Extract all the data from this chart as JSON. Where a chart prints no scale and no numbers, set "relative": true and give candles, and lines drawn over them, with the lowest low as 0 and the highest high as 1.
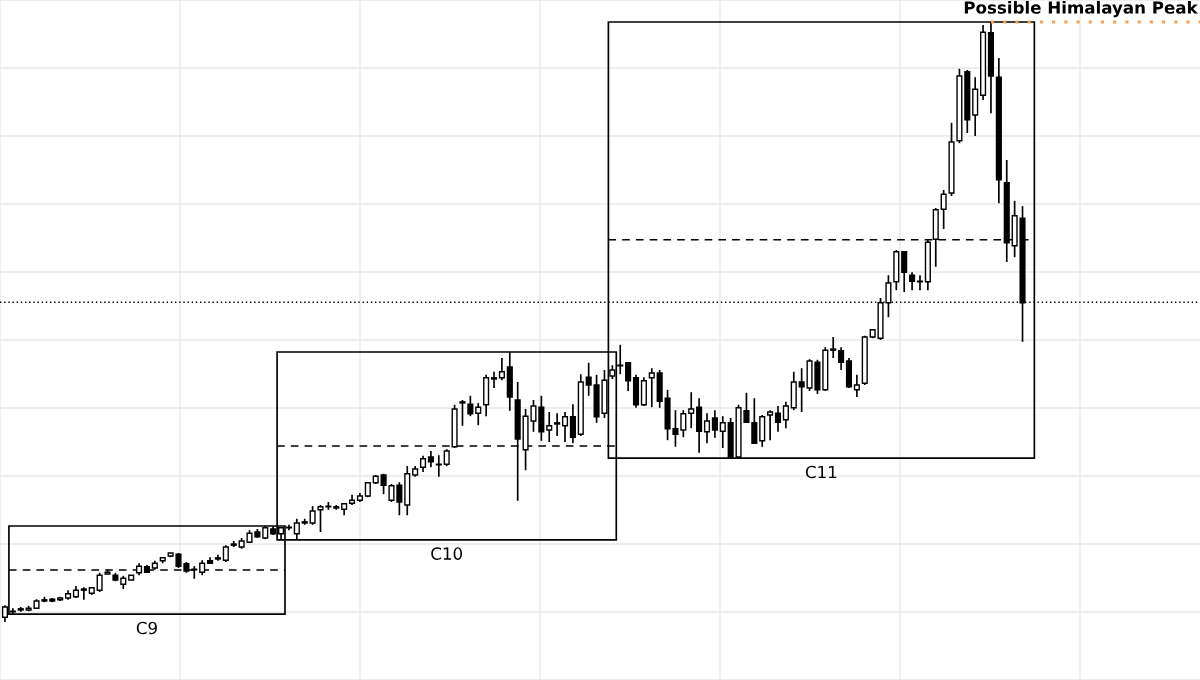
{
  "chart_data": {
    "type": "candlestick",
    "relative": true,
    "grid": true,
    "categories": [
      null,
      null,
      null,
      null,
      null,
      null,
      null,
      null,
      null,
      null,
      null,
      null,
      null,
      null,
      null,
      null,
      null,
      null,
      null,
      null,
      null,
      null,
      null,
      null,
      null,
      null,
      null,
      null,
      null,
      null,
      null,
      null,
      null,
      null,
      null,
      null,
      null,
      null,
      null,
      null,
      null,
      null,
      null,
      null,
      null,
      null,
      null,
      null,
      null,
      null,
      null,
      null,
      null,
      null,
      null,
      null,
      null,
      null,
      null,
      null,
      null,
      null,
      null,
      null,
      null,
      null,
      null,
      null,
      null,
      null,
      null,
      null,
      null,
      null,
      null,
      null,
      null,
      null,
      null,
      null,
      null,
      null,
      null,
      null,
      null,
      null,
      null,
      null,
      null,
      null,
      null,
      null,
      null,
      null,
      null,
      null,
      null,
      null,
      null,
      null,
      null,
      null,
      null,
      null,
      null,
      null,
      null,
      null,
      null,
      null,
      null,
      null,
      null,
      null,
      null,
      null,
      null,
      null,
      null,
      null,
      null,
      null,
      null,
      null,
      null,
      null,
      null,
      null,
      null,
      null
    ],
    "ohlc": [
      [
        0.008,
        0.028,
        0,
        0.025
      ],
      [
        0.017,
        0.023,
        0.013,
        0.018
      ],
      [
        0.02,
        0.025,
        0.017,
        0.022
      ],
      [
        0.02,
        0.027,
        0.018,
        0.023
      ],
      [
        0.023,
        0.038,
        0.022,
        0.035
      ],
      [
        0.035,
        0.042,
        0.033,
        0.037
      ],
      [
        0.038,
        0.04,
        0.033,
        0.035
      ],
      [
        0.037,
        0.042,
        0.035,
        0.04
      ],
      [
        0.04,
        0.053,
        0.037,
        0.047
      ],
      [
        0.042,
        0.06,
        0.04,
        0.053
      ],
      [
        0.053,
        0.058,
        0.037,
        0.055
      ],
      [
        0.048,
        0.058,
        0.045,
        0.057
      ],
      [
        0.053,
        0.082,
        0.05,
        0.078
      ],
      [
        0.08,
        0.087,
        0.08,
        0.083
      ],
      [
        0.078,
        0.082,
        0.068,
        0.07
      ],
      [
        0.063,
        0.077,
        0.055,
        0.073
      ],
      [
        0.07,
        0.078,
        0.07,
        0.078
      ],
      [
        0.082,
        0.098,
        0.078,
        0.093
      ],
      [
        0.092,
        0.095,
        0.082,
        0.083
      ],
      [
        0.09,
        0.102,
        0.087,
        0.098
      ],
      [
        0.102,
        0.108,
        0.098,
        0.107
      ],
      [
        0.11,
        0.115,
        0.108,
        0.115
      ],
      [
        0.113,
        0.115,
        0.09,
        0.093
      ],
      [
        0.097,
        0.1,
        0.082,
        0.085
      ],
      [
        0.087,
        0.093,
        0.072,
        0.088
      ],
      [
        0.083,
        0.103,
        0.078,
        0.098
      ],
      [
        0.102,
        0.108,
        0.097,
        0.098
      ],
      [
        0.105,
        0.112,
        0.102,
        0.107
      ],
      [
        0.103,
        0.128,
        0.1,
        0.125
      ],
      [
        0.128,
        0.135,
        0.125,
        0.13
      ],
      [
        0.125,
        0.14,
        0.122,
        0.135
      ],
      [
        0.133,
        0.153,
        0.132,
        0.148
      ],
      [
        0.15,
        0.155,
        0.14,
        0.142
      ],
      [
        0.14,
        0.16,
        0.138,
        0.157
      ],
      [
        0.155,
        0.16,
        0.145,
        0.147
      ],
      [
        0.147,
        0.158,
        0.137,
        0.157
      ],
      [
        0.157,
        0.162,
        0.153,
        0.158
      ],
      [
        0.147,
        0.172,
        0.137,
        0.165
      ],
      [
        0.165,
        0.172,
        0.162,
        0.167
      ],
      [
        0.165,
        0.193,
        0.162,
        0.185
      ],
      [
        0.187,
        0.195,
        0.15,
        0.192
      ],
      [
        0.192,
        0.2,
        0.187,
        0.193
      ],
      [
        0.19,
        0.195,
        0.187,
        0.192
      ],
      [
        0.188,
        0.198,
        0.178,
        0.197
      ],
      [
        0.198,
        0.212,
        0.195,
        0.203
      ],
      [
        0.203,
        0.215,
        0.2,
        0.21
      ],
      [
        0.21,
        0.232,
        0.208,
        0.232
      ],
      [
        0.232,
        0.245,
        0.23,
        0.243
      ],
      [
        0.245,
        0.247,
        0.213,
        0.228
      ],
      [
        0.203,
        0.23,
        0.2,
        0.227
      ],
      [
        0.228,
        0.233,
        0.178,
        0.2
      ],
      [
        0.195,
        0.26,
        0.178,
        0.247
      ],
      [
        0.245,
        0.26,
        0.242,
        0.255
      ],
      [
        0.258,
        0.277,
        0.25,
        0.272
      ],
      [
        0.275,
        0.285,
        0.258,
        0.267
      ],
      [
        0.262,
        0.278,
        0.242,
        0.263
      ],
      [
        0.263,
        0.288,
        0.26,
        0.285
      ],
      [
        0.292,
        0.362,
        0.29,
        0.355
      ],
      [
        0.365,
        0.37,
        0.327,
        0.367
      ],
      [
        0.363,
        0.377,
        0.343,
        0.347
      ],
      [
        0.348,
        0.365,
        0.328,
        0.358
      ],
      [
        0.362,
        0.412,
        0.343,
        0.407
      ],
      [
        0.405,
        0.417,
        0.39,
        0.407
      ],
      [
        0.407,
        0.44,
        0.403,
        0.417
      ],
      [
        0.425,
        0.45,
        0.352,
        0.375
      ],
      [
        0.37,
        0.4,
        0.202,
        0.305
      ],
      [
        0.287,
        0.355,
        0.253,
        0.343
      ],
      [
        0.335,
        0.37,
        0.317,
        0.36
      ],
      [
        0.358,
        0.377,
        0.302,
        0.317
      ],
      [
        0.32,
        0.35,
        0.3,
        0.327
      ],
      [
        0.33,
        0.348,
        0.31,
        0.332
      ],
      [
        0.327,
        0.35,
        0.3,
        0.342
      ],
      [
        0.342,
        0.363,
        0.298,
        0.308
      ],
      [
        0.313,
        0.413,
        0.31,
        0.4
      ],
      [
        0.408,
        0.432,
        0.377,
        0.395
      ],
      [
        0.395,
        0.412,
        0.332,
        0.342
      ],
      [
        0.348,
        0.42,
        0.34,
        0.403
      ],
      [
        0.41,
        0.428,
        0.405,
        0.42
      ],
      [
        0.427,
        0.462,
        0.413,
        0.428
      ],
      [
        0.432,
        0.433,
        0.385,
        0.402
      ],
      [
        0.407,
        0.412,
        0.357,
        0.362
      ],
      [
        0.362,
        0.408,
        0.36,
        0.402
      ],
      [
        0.407,
        0.423,
        0.358,
        0.415
      ],
      [
        0.415,
        0.42,
        0.357,
        0.368
      ],
      [
        0.373,
        0.387,
        0.303,
        0.322
      ],
      [
        0.322,
        0.353,
        0.292,
        0.313
      ],
      [
        0.32,
        0.353,
        0.308,
        0.347
      ],
      [
        0.348,
        0.383,
        0.323,
        0.355
      ],
      [
        0.358,
        0.373,
        0.282,
        0.318
      ],
      [
        0.317,
        0.348,
        0.298,
        0.335
      ],
      [
        0.34,
        0.353,
        0.307,
        0.32
      ],
      [
        0.318,
        0.343,
        0.29,
        0.332
      ],
      [
        0.332,
        0.34,
        0.273,
        0.275
      ],
      [
        0.275,
        0.362,
        0.273,
        0.357
      ],
      [
        0.352,
        0.382,
        0.333,
        0.333
      ],
      [
        0.332,
        0.373,
        0.298,
        0.298
      ],
      [
        0.302,
        0.345,
        0.292,
        0.342
      ],
      [
        0.345,
        0.353,
        0.303,
        0.35
      ],
      [
        0.348,
        0.36,
        0.317,
        0.333
      ],
      [
        0.337,
        0.367,
        0.323,
        0.36
      ],
      [
        0.357,
        0.417,
        0.353,
        0.4
      ],
      [
        0.4,
        0.423,
        0.35,
        0.392
      ],
      [
        0.39,
        0.438,
        0.385,
        0.435
      ],
      [
        0.433,
        0.437,
        0.38,
        0.387
      ],
      [
        0.387,
        0.458,
        0.385,
        0.453
      ],
      [
        0.453,
        0.475,
        0.44,
        0.455
      ],
      [
        0.452,
        0.458,
        0.42,
        0.433
      ],
      [
        0.435,
        0.44,
        0.39,
        0.392
      ],
      [
        0.387,
        0.412,
        0.375,
        0.395
      ],
      [
        0.398,
        0.477,
        0.395,
        0.475
      ],
      [
        0.475,
        0.488,
        0.473,
        0.487
      ],
      [
        0.473,
        0.54,
        0.47,
        0.532
      ],
      [
        0.532,
        0.578,
        0.508,
        0.565
      ],
      [
        0.567,
        0.62,
        0.553,
        0.617
      ],
      [
        0.617,
        0.618,
        0.55,
        0.583
      ],
      [
        0.578,
        0.583,
        0.553,
        0.568
      ],
      [
        0.567,
        0.578,
        0.553,
        0.568
      ],
      [
        0.567,
        0.638,
        0.553,
        0.633
      ],
      [
        0.638,
        0.69,
        0.592,
        0.687
      ],
      [
        0.688,
        0.72,
        0.655,
        0.713
      ],
      [
        0.715,
        0.832,
        0.71,
        0.8
      ],
      [
        0.802,
        0.922,
        0.798,
        0.91
      ],
      [
        0.917,
        0.92,
        0.815,
        0.837
      ],
      [
        0.845,
        0.908,
        0.81,
        0.888
      ],
      [
        0.878,
        0.995,
        0.87,
        0.983
      ],
      [
        0.982,
        1.0,
        0.848,
        0.91
      ],
      [
        0.908,
        0.94,
        0.698,
        0.737
      ],
      [
        0.732,
        0.77,
        0.6,
        0.632
      ],
      [
        0.627,
        0.702,
        0.608,
        0.677
      ],
      [
        0.673,
        0.693,
        0.467,
        0.532
      ]
    ],
    "annotations": [
      "C9",
      "C10",
      "C11"
    ],
    "ref_lines": [
      {
        "axis": "y",
        "value": 0.533,
        "color": "#000000",
        "line_style": "dotted"
      },
      {
        "axis": "y",
        "value": 0.637,
        "color": "#000000",
        "line_style": "dashed"
      },
      {
        "axis": "y",
        "value": 1.0,
        "label": "Possible Himalayan Peak",
        "color": "#f5a04a",
        "line_style": "dotted"
      }
    ]
  }
}
